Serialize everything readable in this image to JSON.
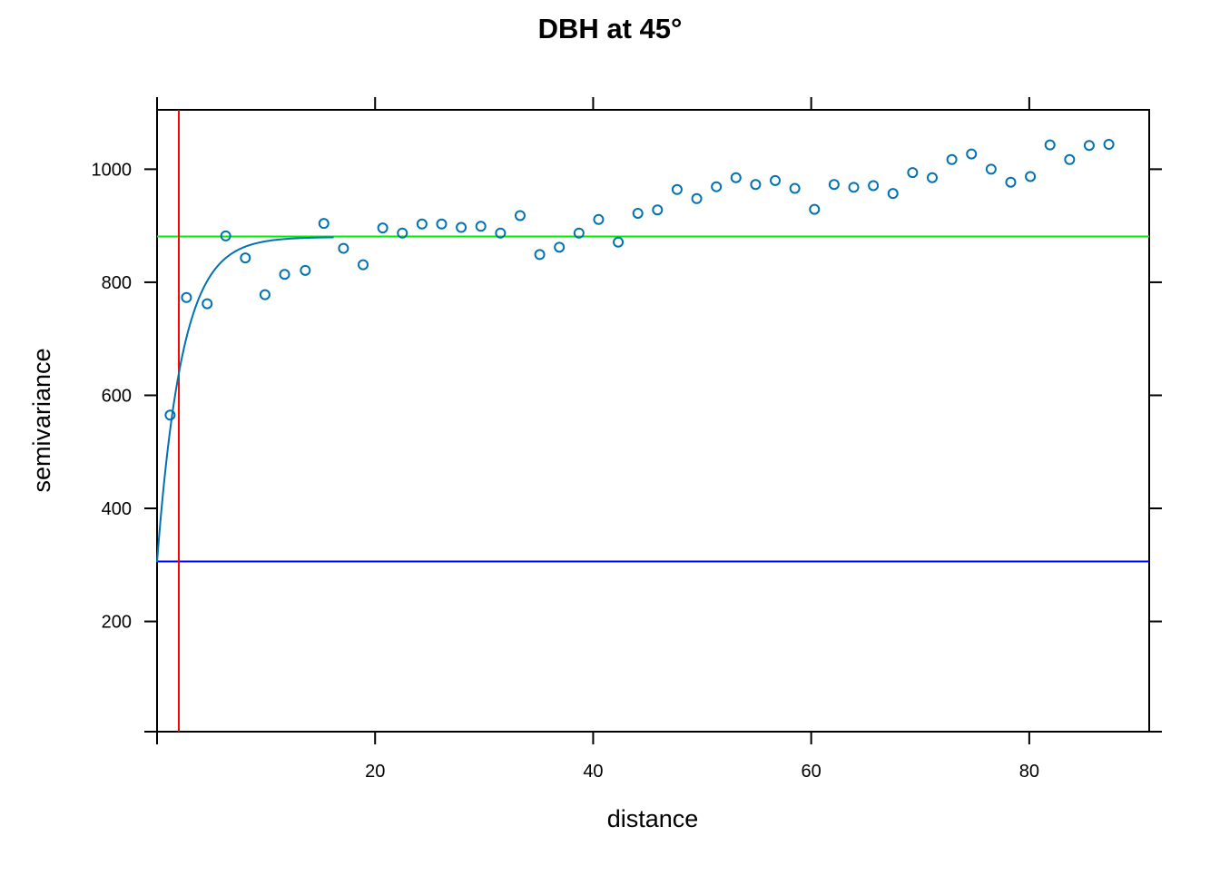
{
  "chart_data": {
    "type": "scatter",
    "title": "DBH at 45°",
    "xlabel": "distance",
    "ylabel": "semivariance",
    "xlim": [
      0,
      91
    ],
    "ylim": [
      5,
      1105
    ],
    "x_ticks": [
      20,
      40,
      60,
      80
    ],
    "y_ticks": [
      200,
      400,
      600,
      800,
      1000
    ],
    "grid": false,
    "colors": {
      "points": "#0072b2",
      "model_curve": "#0072b2",
      "sill_line": "#00ee00",
      "nugget_line": "#0000ff",
      "range_line": "#ff0000",
      "frame": "#000000"
    },
    "series": [
      {
        "type": "scatter",
        "x": [
          1.2,
          2.7,
          4.6,
          6.3,
          8.1,
          9.9,
          11.7,
          13.6,
          15.3,
          17.1,
          18.9,
          20.7,
          22.5,
          24.3,
          26.1,
          27.9,
          29.7,
          31.5,
          33.3,
          35.1,
          36.9,
          38.7,
          40.5,
          42.3,
          44.1,
          45.9,
          47.7,
          49.5,
          51.3,
          53.1,
          54.9,
          56.7,
          58.5,
          60.3,
          62.1,
          63.9,
          65.7,
          67.5,
          69.3,
          71.1,
          72.9,
          74.7,
          76.5,
          78.3,
          80.1,
          81.9,
          83.7,
          85.5,
          87.3
        ],
        "values": [
          565,
          773,
          762,
          882,
          843,
          778,
          814,
          821,
          904,
          860,
          831,
          896,
          887,
          903,
          903,
          897,
          899,
          887,
          918,
          849,
          862,
          887,
          911,
          871,
          922,
          928,
          964,
          948,
          969,
          985,
          973,
          980,
          966,
          929,
          973,
          968,
          971,
          957,
          994,
          985,
          1017,
          1027,
          1000,
          977,
          987,
          1043,
          1017,
          1042,
          1044
        ]
      },
      {
        "type": "line",
        "model": "exponential",
        "nugget": 305,
        "sill": 880,
        "range_param": 2.3,
        "x_max": 16.2
      }
    ],
    "reference_lines": [
      {
        "orientation": "horizontal",
        "value": 881
      },
      {
        "orientation": "horizontal",
        "value": 306
      },
      {
        "orientation": "vertical",
        "value": 2.0
      }
    ]
  }
}
